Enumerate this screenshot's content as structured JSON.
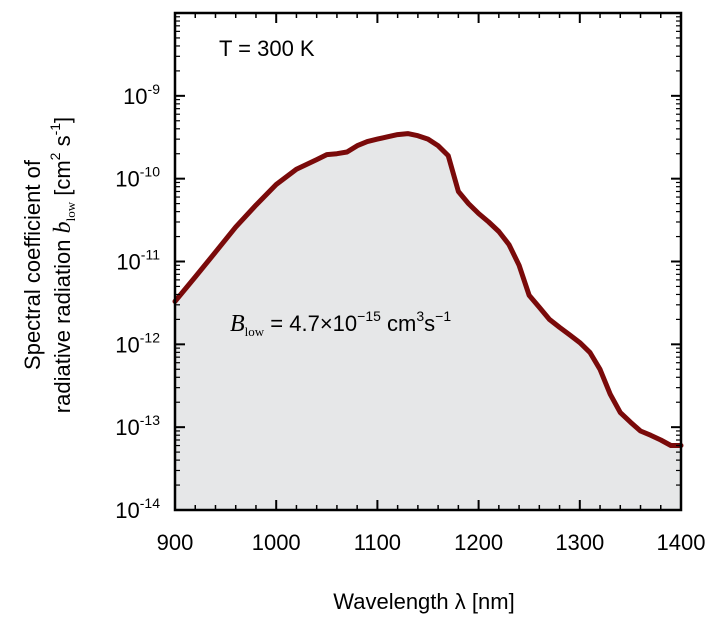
{
  "chart_data": {
    "type": "area",
    "x_label_text": "Wavelength",
    "x_label_symbol": "λ",
    "x_label_unit": "[nm]",
    "y_label_line1": "Spectral coefficient of",
    "y_label_line2_prefix": "radiative radiation",
    "y_label_symbol": "b",
    "y_label_subscript": "low",
    "y_label_unit_open": "[cm",
    "y_label_unit_exp1": "2",
    "y_label_unit_s": " s",
    "y_label_unit_exp2": "-1",
    "y_label_unit_close": "]",
    "xlim": [
      900,
      1400
    ],
    "ylim": [
      1e-14,
      1e-08
    ],
    "y_scale": "log",
    "x_ticks": [
      900,
      1000,
      1100,
      1200,
      1300,
      1400
    ],
    "x_tick_labels": [
      "900",
      "1000",
      "1100",
      "1200",
      "1300",
      "1400"
    ],
    "y_ticks": [
      {
        "value": 1e-09,
        "base": "10",
        "exp": "-9"
      },
      {
        "value": 1e-10,
        "base": "10",
        "exp": "-10"
      },
      {
        "value": 1e-11,
        "base": "10",
        "exp": "-11"
      },
      {
        "value": 1e-12,
        "base": "10",
        "exp": "-12"
      },
      {
        "value": 1e-13,
        "base": "10",
        "exp": "-13"
      },
      {
        "value": 1e-14,
        "base": "10",
        "exp": "-14"
      }
    ],
    "annotations": {
      "temperature": "T = 300 K",
      "B_symbol": "B",
      "B_subscript": "low",
      "B_value_text": " = 4.7×10",
      "B_exp": "−15",
      "B_unit": " cm",
      "B_unit_exp1": "3",
      "B_unit_s": "s",
      "B_unit_exp2": "−1"
    },
    "series": [
      {
        "x": [
          900,
          920,
          940,
          960,
          980,
          1000,
          1020,
          1040,
          1050,
          1060,
          1070,
          1080,
          1090,
          1100,
          1110,
          1120,
          1130,
          1140,
          1150,
          1160,
          1170,
          1180,
          1190,
          1200,
          1210,
          1220,
          1230,
          1240,
          1250,
          1260,
          1270,
          1280,
          1290,
          1300,
          1310,
          1320,
          1330,
          1340,
          1350,
          1360,
          1370,
          1380,
          1390,
          1400
        ],
        "values": [
          3.3e-12,
          6.5e-12,
          1.3e-11,
          2.6e-11,
          4.8e-11,
          8.5e-11,
          1.3e-10,
          1.7e-10,
          1.95e-10,
          2e-10,
          2.1e-10,
          2.5e-10,
          2.8e-10,
          3e-10,
          3.2e-10,
          3.4e-10,
          3.5e-10,
          3.3e-10,
          3e-10,
          2.5e-10,
          1.9e-10,
          7e-11,
          5e-11,
          3.8e-11,
          3e-11,
          2.3e-11,
          1.6e-11,
          9e-12,
          3.9e-12,
          2.8e-12,
          2e-12,
          1.6e-12,
          1.3e-12,
          1.05e-12,
          8e-13,
          5e-13,
          2.5e-13,
          1.5e-13,
          1.15e-13,
          9e-14,
          8e-14,
          7e-14,
          6e-14,
          6e-14
        ]
      }
    ],
    "colors": {
      "line": "#7a0a0a",
      "fill": "#e6e7e8",
      "axis": "#000000"
    },
    "grid": false,
    "legend": "none"
  }
}
